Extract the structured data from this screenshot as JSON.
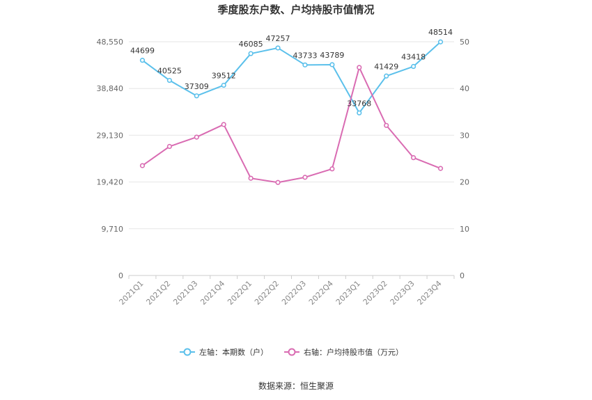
{
  "chart_data": {
    "type": "line",
    "title": "季度股东户数、户均持股市值情况",
    "categories": [
      "2021Q1",
      "2021Q2",
      "2021Q3",
      "2021Q4",
      "2022Q1",
      "2022Q2",
      "2022Q3",
      "2022Q4",
      "2023Q1",
      "2023Q2",
      "2023Q3",
      "2023Q4"
    ],
    "left_axis": {
      "ticks": [
        "0",
        "9,710",
        "19,420",
        "29,130",
        "38,840",
        "48,550"
      ],
      "ylim": [
        0,
        48550
      ]
    },
    "right_axis": {
      "ticks": [
        "0",
        "10",
        "20",
        "30",
        "40",
        "50"
      ],
      "ylim": [
        0,
        50
      ]
    },
    "series": [
      {
        "name": "左轴：本期数（户）",
        "axis": "left",
        "color": "#5bc0eb",
        "values": [
          44699,
          40525,
          37309,
          39512,
          46085,
          47257,
          43733,
          43789,
          33768,
          41429,
          43418,
          48514
        ],
        "labels": [
          "44699",
          "40525",
          "37309",
          "39512",
          "46085",
          "47257",
          "43733",
          "43789",
          "33768",
          "41429",
          "43418",
          "48514"
        ]
      },
      {
        "name": "右轴：户均持股市值（万元）",
        "axis": "right",
        "color": "#d96bb2",
        "values": [
          23.5,
          27.6,
          29.6,
          32.3,
          20.8,
          19.9,
          21.0,
          22.8,
          44.5,
          32.1,
          25.2,
          22.9
        ]
      }
    ],
    "grid": true,
    "legend_position": "bottom"
  },
  "source": "数据来源：恒生聚源"
}
